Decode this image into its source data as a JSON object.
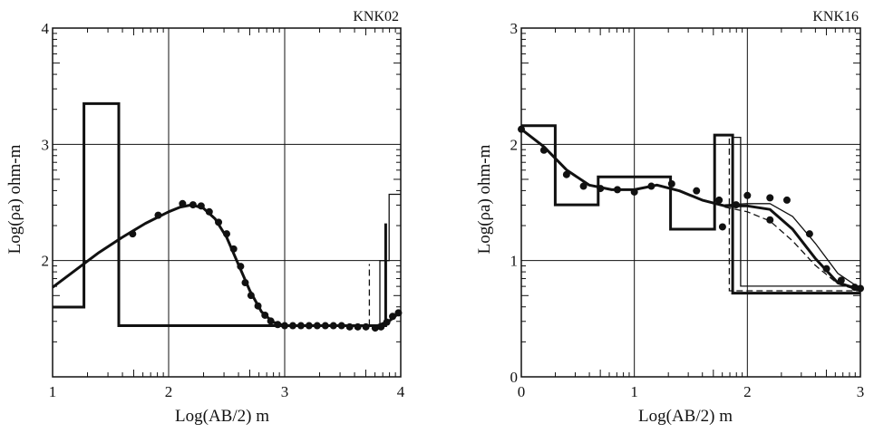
{
  "chart_data": [
    {
      "type": "line",
      "title": "KNK02",
      "xlabel": "Log(AB/2) m",
      "ylabel": "Log(ρa) ohm-m",
      "xlim": [
        1,
        4
      ],
      "ylim": [
        1,
        4
      ],
      "x_ticks": [
        "1",
        "2",
        "3",
        "4"
      ],
      "y_ticks": [
        "2",
        "3",
        "4"
      ],
      "grid": true,
      "series": [
        {
          "style": "dots",
          "x": [
            1.69,
            1.91,
            2.12,
            2.21,
            2.28,
            2.35,
            2.43,
            2.5,
            2.56,
            2.62,
            2.66,
            2.71,
            2.77,
            2.83,
            2.88,
            2.94,
            3.0,
            3.07,
            3.14,
            3.21,
            3.28,
            3.35,
            3.42,
            3.49,
            3.56,
            3.63,
            3.7,
            3.78,
            3.83,
            3.88,
            3.93,
            3.98
          ],
          "y": [
            2.23,
            2.39,
            2.49,
            2.48,
            2.47,
            2.42,
            2.33,
            2.23,
            2.1,
            1.95,
            1.81,
            1.7,
            1.61,
            1.53,
            1.48,
            1.45,
            1.44,
            1.44,
            1.44,
            1.44,
            1.44,
            1.44,
            1.44,
            1.44,
            1.43,
            1.43,
            1.43,
            1.42,
            1.43,
            1.47,
            1.52,
            1.55
          ]
        },
        {
          "style": "thick-curve",
          "x": [
            1.0,
            1.2,
            1.4,
            1.6,
            1.8,
            2.0,
            2.1,
            2.2,
            2.3,
            2.4,
            2.5,
            2.6,
            2.7,
            2.8,
            2.9,
            3.0,
            3.2,
            3.4,
            3.6,
            3.8,
            3.9,
            4.0
          ],
          "y": [
            1.77,
            1.92,
            2.07,
            2.2,
            2.32,
            2.42,
            2.46,
            2.48,
            2.45,
            2.36,
            2.2,
            1.97,
            1.74,
            1.56,
            1.47,
            1.44,
            1.44,
            1.44,
            1.44,
            1.44,
            1.48,
            1.56
          ]
        },
        {
          "style": "thick-step",
          "x": [
            1.0,
            1.27,
            1.27,
            1.57,
            1.57,
            3.87,
            3.87,
            3.87
          ],
          "y": [
            1.6,
            1.6,
            3.35,
            3.35,
            1.44,
            1.44,
            2.32,
            2.32
          ]
        },
        {
          "style": "thin-step",
          "x": [
            3.82,
            3.82,
            3.9,
            3.9,
            4.0
          ],
          "y": [
            1.44,
            2.0,
            2.0,
            2.57,
            2.57
          ]
        },
        {
          "style": "dashed-step",
          "x": [
            3.73,
            3.73
          ],
          "y": [
            1.44,
            1.97
          ]
        }
      ]
    },
    {
      "type": "line",
      "title": "KNK16",
      "xlabel": "Log(AB/2) m",
      "ylabel": "Log(ρa) ohm-m",
      "xlim": [
        0,
        3
      ],
      "ylim": [
        0,
        3
      ],
      "x_ticks": [
        "0",
        "1",
        "2",
        "3"
      ],
      "y_ticks": [
        "0",
        "1",
        "2",
        "3"
      ],
      "grid": true,
      "series": [
        {
          "style": "dots",
          "x": [
            0.0,
            0.2,
            0.4,
            0.55,
            0.7,
            0.85,
            1.0,
            1.15,
            1.33,
            1.55,
            1.75,
            1.78,
            1.9,
            2.0,
            2.2,
            2.35,
            2.2,
            2.55,
            2.7,
            2.83,
            2.95,
            3.0
          ],
          "y": [
            2.13,
            1.95,
            1.74,
            1.64,
            1.62,
            1.61,
            1.59,
            1.64,
            1.66,
            1.6,
            1.52,
            1.29,
            1.48,
            1.56,
            1.54,
            1.52,
            1.35,
            1.23,
            0.93,
            0.83,
            0.77,
            0.76
          ]
        },
        {
          "style": "thick-curve",
          "x": [
            0.0,
            0.2,
            0.4,
            0.6,
            0.8,
            1.0,
            1.2,
            1.4,
            1.6,
            1.8,
            2.0,
            2.2,
            2.4,
            2.6,
            2.8,
            3.0
          ],
          "y": [
            2.13,
            1.98,
            1.78,
            1.65,
            1.61,
            1.61,
            1.65,
            1.6,
            1.52,
            1.47,
            1.47,
            1.44,
            1.27,
            1.02,
            0.81,
            0.75
          ]
        },
        {
          "style": "thin-curve",
          "x": [
            1.8,
            2.0,
            2.2,
            2.4,
            2.6,
            2.8,
            3.0
          ],
          "y": [
            1.48,
            1.49,
            1.49,
            1.38,
            1.15,
            0.89,
            0.76
          ]
        },
        {
          "style": "dashed-curve",
          "x": [
            1.8,
            2.0,
            2.2,
            2.4,
            2.6,
            2.8,
            3.0
          ],
          "y": [
            1.46,
            1.42,
            1.34,
            1.17,
            0.96,
            0.8,
            0.74
          ]
        },
        {
          "style": "thick-step",
          "x": [
            0.0,
            0.3,
            0.3,
            0.68,
            0.68,
            1.32,
            1.32,
            1.71,
            1.71,
            1.87,
            1.87,
            3.0
          ],
          "y": [
            2.16,
            2.16,
            1.48,
            1.48,
            1.72,
            1.72,
            1.27,
            1.27,
            2.08,
            2.08,
            0.72,
            0.72
          ]
        },
        {
          "style": "thin-step",
          "x": [
            1.87,
            1.94,
            1.94,
            3.0
          ],
          "y": [
            2.06,
            2.06,
            0.78,
            0.78
          ]
        },
        {
          "style": "dashed-step",
          "x": [
            1.84,
            1.84,
            3.0
          ],
          "y": [
            2.05,
            0.74,
            0.74
          ]
        }
      ]
    }
  ]
}
